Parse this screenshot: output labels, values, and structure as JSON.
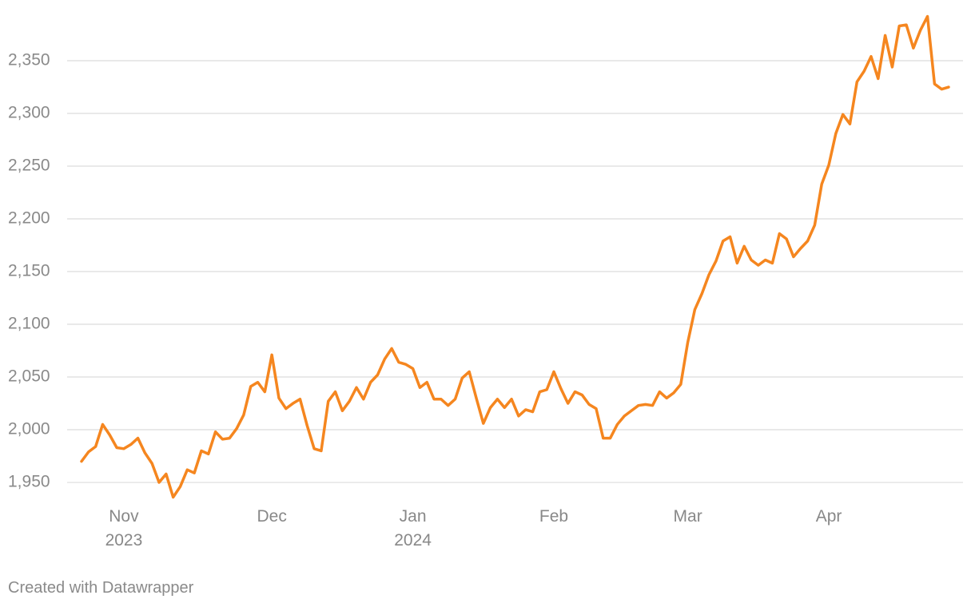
{
  "chart_data": {
    "type": "line",
    "categories": [
      null,
      null,
      null,
      null,
      null,
      null,
      "Nov\n2023",
      null,
      null,
      null,
      null,
      null,
      null,
      null,
      null,
      null,
      null,
      null,
      null,
      null,
      null,
      null,
      null,
      null,
      null,
      null,
      null,
      "Dec",
      null,
      null,
      null,
      null,
      null,
      null,
      null,
      null,
      null,
      null,
      null,
      null,
      null,
      null,
      null,
      null,
      null,
      null,
      null,
      "Jan\n2024",
      null,
      null,
      null,
      null,
      null,
      null,
      null,
      null,
      null,
      null,
      null,
      null,
      null,
      null,
      null,
      null,
      null,
      null,
      null,
      "Feb",
      null,
      null,
      null,
      null,
      null,
      null,
      null,
      null,
      null,
      null,
      null,
      null,
      null,
      null,
      null,
      null,
      null,
      null,
      "Mar",
      null,
      null,
      null,
      null,
      null,
      null,
      null,
      null,
      null,
      null,
      null,
      null,
      null,
      null,
      null,
      null,
      null,
      null,
      null,
      "Apr",
      null,
      null,
      null,
      null,
      null,
      null,
      null,
      null,
      null,
      null,
      null,
      null,
      null,
      null,
      null,
      null,
      null
    ],
    "series": [
      {
        "color": "#f5861f",
        "values": [
          1970,
          1979,
          1984,
          2005,
          1995,
          1983,
          1982,
          1986,
          1992,
          1978,
          1968,
          1950,
          1958,
          1936,
          1946,
          1962,
          1959,
          1980,
          1977,
          1998,
          1991,
          1992,
          2001,
          2014,
          2041,
          2045,
          2036,
          2071,
          2030,
          2020,
          2025,
          2029,
          2004,
          1982,
          1980,
          2027,
          2036,
          2018,
          2027,
          2040,
          2029,
          2045,
          2052,
          2067,
          2077,
          2064,
          2062,
          2058,
          2040,
          2045,
          2029,
          2029,
          2023,
          2029,
          2049,
          2055,
          2030,
          2006,
          2021,
          2029,
          2021,
          2029,
          2013,
          2019,
          2017,
          2036,
          2038,
          2055,
          2039,
          2025,
          2036,
          2033,
          2024,
          2020,
          1992,
          1992,
          2005,
          2013,
          2018,
          2023,
          2024,
          2023,
          2036,
          2030,
          2035,
          2043,
          2083,
          2114,
          2129,
          2147,
          2160,
          2179,
          2183,
          2158,
          2174,
          2161,
          2156,
          2161,
          2158,
          2186,
          2181,
          2164,
          2172,
          2179,
          2194,
          2233,
          2251,
          2281,
          2299,
          2290,
          2330,
          2340,
          2354,
          2333,
          2374,
          2344,
          2383,
          2384,
          2362,
          2379,
          2392,
          2328,
          2323,
          2325
        ]
      }
    ],
    "ylim": [
      1932,
      2396
    ],
    "yticks": [
      {
        "value": 1950,
        "label": "1,950"
      },
      {
        "value": 2000,
        "label": "2,000"
      },
      {
        "value": 2050,
        "label": "2,050"
      },
      {
        "value": 2100,
        "label": "2,100"
      },
      {
        "value": 2150,
        "label": "2,150"
      },
      {
        "value": 2200,
        "label": "2,200"
      },
      {
        "value": 2250,
        "label": "2,250"
      },
      {
        "value": 2300,
        "label": "2,300"
      },
      {
        "value": 2350,
        "label": "2,350"
      }
    ],
    "grid": true,
    "footer": "Created with Datawrapper"
  }
}
